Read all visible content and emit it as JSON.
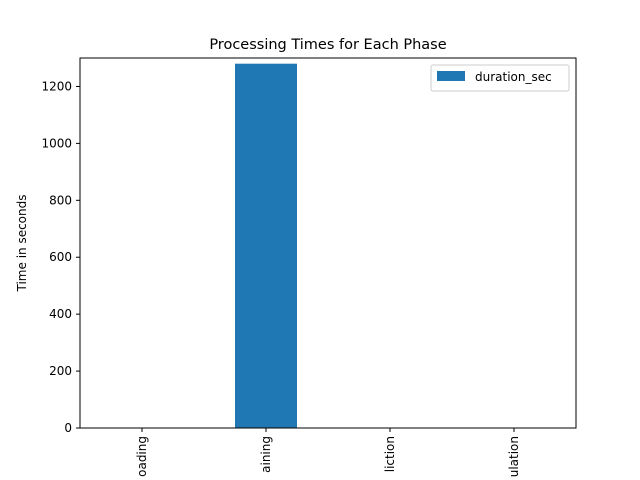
{
  "chart_data": {
    "type": "bar",
    "title": "Processing Times for Each Phase",
    "xlabel": "",
    "ylabel": "Time in seconds",
    "categories": [
      "Data Loading",
      "Training",
      "Prediction",
      "Evaluation"
    ],
    "visible_tick_labels": [
      "oading",
      "aining",
      "liction",
      "ulation"
    ],
    "series": [
      {
        "name": "duration_sec",
        "values": [
          0.5,
          1280,
          0.3,
          0.2
        ],
        "color": "#1f77b4"
      }
    ],
    "ylim": [
      0,
      1300
    ],
    "yticks": [
      0,
      200,
      400,
      600,
      800,
      1000,
      1200
    ],
    "grid": false,
    "legend_position": "top-right"
  }
}
